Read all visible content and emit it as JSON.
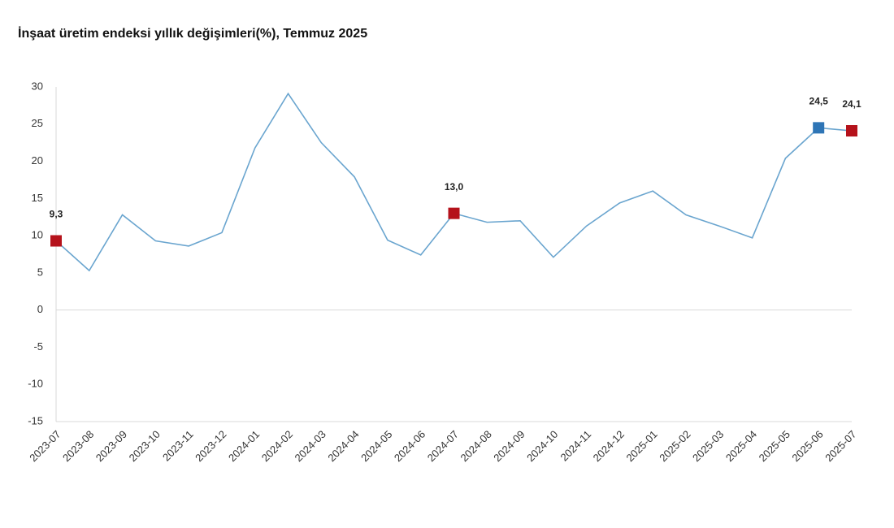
{
  "chart_data": {
    "type": "line",
    "title": "İnşaat üretim endeksi yıllık değişimleri(%), Temmuz 2025",
    "categories": [
      "2023-07",
      "2023-08",
      "2023-09",
      "2023-10",
      "2023-11",
      "2023-12",
      "2024-01",
      "2024-02",
      "2024-03",
      "2024-04",
      "2024-05",
      "2024-06",
      "2024-07",
      "2024-08",
      "2024-09",
      "2024-10",
      "2024-11",
      "2024-12",
      "2025-01",
      "2025-02",
      "2025-03",
      "2025-04",
      "2025-05",
      "2025-06",
      "2025-07"
    ],
    "values": [
      9.3,
      5.3,
      12.8,
      9.3,
      8.6,
      10.4,
      21.8,
      29.1,
      22.5,
      17.9,
      9.4,
      7.4,
      13.0,
      11.8,
      12.0,
      7.1,
      11.3,
      14.4,
      16.0,
      12.8,
      11.3,
      9.7,
      20.4,
      24.5,
      24.1
    ],
    "value_labels": [
      "9,3",
      null,
      null,
      null,
      null,
      null,
      null,
      null,
      null,
      null,
      null,
      null,
      "13,0",
      null,
      null,
      null,
      null,
      null,
      null,
      null,
      null,
      null,
      null,
      "24,5",
      "24,1"
    ],
    "marker_colors": [
      "#b5121b",
      null,
      null,
      null,
      null,
      null,
      null,
      null,
      null,
      null,
      null,
      null,
      "#b5121b",
      null,
      null,
      null,
      null,
      null,
      null,
      null,
      null,
      null,
      null,
      "#2e75b6",
      "#b5121b"
    ],
    "color": "#6aa5cf",
    "ylim": [
      -15,
      30
    ],
    "yticks": [
      -15,
      -10,
      -5,
      0,
      5,
      10,
      15,
      20,
      25,
      30
    ]
  }
}
